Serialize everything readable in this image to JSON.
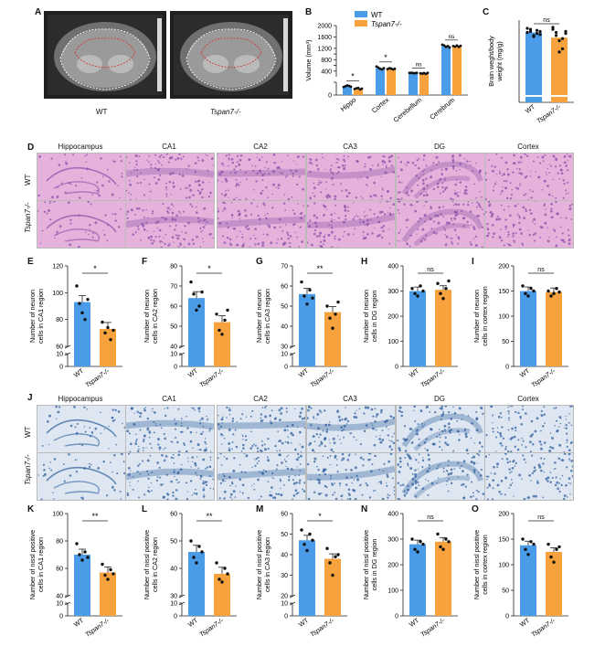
{
  "colors": {
    "wt": "#4a9be8",
    "ko": "#f7a23c",
    "he_bg": "#e6b2dc",
    "he_dot": "#8a4fa6",
    "nissl_bg": "#dde6f1",
    "nissl_dot": "#2f5f9d",
    "mri_bg": "#1f1f1f"
  },
  "panels": {
    "A": "A",
    "B": "B",
    "C": "C",
    "D": "D",
    "E": "E",
    "F": "F",
    "G": "G",
    "H": "H",
    "I": "I",
    "J": "J",
    "K": "K",
    "L": "L",
    "M": "M",
    "N": "N",
    "O": "O"
  },
  "mri": {
    "wt_label": "WT",
    "ko_label": "Tspan7-/-"
  },
  "histology": {
    "columns": [
      "Hippocampus",
      "CA1",
      "CA2",
      "CA3",
      "DG",
      "Cortex"
    ],
    "rows": [
      "WT",
      "Tspan7-/-"
    ]
  },
  "chart_data": [
    {
      "id": "B",
      "type": "bar",
      "categories": [
        "Hippo",
        "Cortex",
        "Cerebellum",
        "Cerebrum"
      ],
      "series": [
        {
          "name": "WT",
          "values": [
            140,
            500,
            330,
            1280
          ]
        },
        {
          "name": "Tspan7-/-",
          "values": [
            100,
            480,
            320,
            1270
          ]
        }
      ],
      "points": {
        "WT": [
          [
            125,
            138,
            150,
            142,
            130
          ],
          [
            560,
            520,
            480,
            460,
            500
          ],
          [
            335,
            340,
            330,
            325,
            338
          ],
          [
            1330,
            1300,
            1250,
            1280,
            1230
          ]
        ],
        "Tspan7-/-": [
          [
            95,
            105,
            110,
            88,
            100
          ],
          [
            470,
            500,
            490,
            460,
            480
          ],
          [
            320,
            310,
            330,
            300,
            335
          ],
          [
            1280,
            1260,
            1300,
            1250,
            1290
          ]
        ]
      },
      "ylabel": "Volume (mm³)",
      "yticks": [
        0,
        200,
        400,
        600,
        800,
        1000,
        1200,
        1400,
        1600,
        2000
      ],
      "ylim": [
        0,
        2000
      ],
      "significance": [
        "*",
        "*",
        "ns",
        "ns"
      ],
      "legend": [
        "WT",
        "Tspan7-/-"
      ]
    },
    {
      "id": "C",
      "type": "bar",
      "categories": [
        "WT",
        "Tspan7-/-"
      ],
      "values": [
        6.8,
        6.3
      ],
      "points": [
        [
          7.2,
          6.9,
          6.5,
          7.0,
          6.6,
          6.8,
          7.1,
          6.4,
          6.7,
          6.9
        ],
        [
          7.3,
          6.8,
          6.0,
          5.2,
          6.9,
          7.1,
          6.5,
          4.9,
          6.2,
          6.7
        ]
      ],
      "ylabel": "Brain weght/body weight (mg/g)",
      "ylim": [
        0,
        8
      ],
      "yticks": [],
      "significance": "ns"
    },
    {
      "id": "E",
      "type": "bar",
      "categories": [
        "WT",
        "Tspan7-/-"
      ],
      "values": [
        93,
        73
      ],
      "points": [
        [
          105,
          92,
          85,
          80,
          95
        ],
        [
          78,
          70,
          74,
          65,
          72
        ]
      ],
      "ylabel": "Number of neuron cells in CA1 region",
      "yticks": [
        0,
        10,
        60,
        80,
        100,
        120
      ],
      "ylim": [
        0,
        120
      ],
      "break": [
        10,
        60
      ],
      "significance": "*"
    },
    {
      "id": "F",
      "type": "bar",
      "categories": [
        "WT",
        "Tspan7-/-"
      ],
      "values": [
        64,
        52
      ],
      "points": [
        [
          72,
          66,
          58,
          60,
          67
        ],
        [
          56,
          48,
          46,
          53,
          58
        ]
      ],
      "ylabel": "Number of neuron cells in CA2 region",
      "yticks": [
        0,
        10,
        40,
        50,
        60,
        70,
        80
      ],
      "ylim": [
        0,
        80
      ],
      "break": [
        10,
        40
      ],
      "significance": "*"
    },
    {
      "id": "G",
      "type": "bar",
      "categories": [
        "WT",
        "Tspan7-/-"
      ],
      "values": [
        56,
        47
      ],
      "points": [
        [
          62,
          55,
          51,
          58,
          54
        ],
        [
          50,
          44,
          39,
          46,
          52
        ]
      ],
      "ylabel": "Number of neuron cells in CA3 region",
      "yticks": [
        0,
        10,
        30,
        40,
        50,
        60,
        70
      ],
      "ylim": [
        0,
        70
      ],
      "break": [
        10,
        30
      ],
      "significance": "**"
    },
    {
      "id": "H",
      "type": "bar",
      "categories": [
        "WT",
        "Tspan7-/-"
      ],
      "values": [
        300,
        305
      ],
      "points": [
        [
          310,
          290,
          280,
          320,
          300
        ],
        [
          330,
          290,
          270,
          310,
          340
        ]
      ],
      "ylabel": "Number of neuron cells in DG region",
      "yticks": [
        0,
        100,
        200,
        300,
        400
      ],
      "ylim": [
        0,
        400
      ],
      "significance": "ns"
    },
    {
      "id": "I",
      "type": "bar",
      "categories": [
        "WT",
        "Tspan7-/-"
      ],
      "values": [
        150,
        148
      ],
      "points": [
        [
          160,
          145,
          140,
          155,
          150
        ],
        [
          150,
          140,
          145,
          155,
          148
        ]
      ],
      "ylabel": "Number of neuron cells in cortex region",
      "yticks": [
        0,
        50,
        100,
        150,
        200
      ],
      "ylim": [
        0,
        200
      ],
      "significance": "ns"
    },
    {
      "id": "K",
      "type": "bar",
      "categories": [
        "WT",
        "Tspan7-/-"
      ],
      "values": [
        70,
        57
      ],
      "points": [
        [
          78,
          70,
          66,
          72,
          68
        ],
        [
          63,
          55,
          52,
          59,
          56
        ]
      ],
      "ylabel": "Number of nissl positive cells in CA1 region",
      "yticks": [
        0,
        10,
        40,
        60,
        80,
        100
      ],
      "ylim": [
        0,
        100
      ],
      "break": [
        10,
        40
      ],
      "significance": "**"
    },
    {
      "id": "L",
      "type": "bar",
      "categories": [
        "WT",
        "Tspan7-/-"
      ],
      "values": [
        46,
        38
      ],
      "points": [
        [
          50,
          44,
          42,
          48,
          46
        ],
        [
          42,
          36,
          35,
          40,
          38
        ]
      ],
      "ylabel": "Number of nissl positive cells in CA2 region",
      "yticks": [
        0,
        10,
        30,
        40,
        50,
        60
      ],
      "ylim": [
        0,
        60
      ],
      "break": [
        10,
        30
      ],
      "significance": "**"
    },
    {
      "id": "M",
      "type": "bar",
      "categories": [
        "WT",
        "Tspan7-/-"
      ],
      "values": [
        47,
        38
      ],
      "points": [
        [
          52,
          45,
          42,
          50,
          47
        ],
        [
          43,
          36,
          30,
          39,
          40
        ]
      ],
      "ylabel": "Number of nissl positive cells in CA3 region",
      "yticks": [
        0,
        10,
        20,
        30,
        40,
        50,
        60
      ],
      "ylim": [
        0,
        60
      ],
      "break": [
        10,
        20
      ],
      "significance": "*"
    },
    {
      "id": "N",
      "type": "bar",
      "categories": [
        "WT",
        "Tspan7-/-"
      ],
      "values": [
        280,
        290
      ],
      "points": [
        [
          300,
          260,
          250,
          290,
          280
        ],
        [
          320,
          270,
          260,
          300,
          290
        ]
      ],
      "ylabel": "Number of nissl positive cells in DG region",
      "yticks": [
        0,
        100,
        200,
        300,
        400
      ],
      "ylim": [
        0,
        400
      ],
      "significance": "ns"
    },
    {
      "id": "O",
      "type": "bar",
      "categories": [
        "WT",
        "Tspan7-/-"
      ],
      "values": [
        138,
        125
      ],
      "points": [
        [
          150,
          130,
          120,
          145,
          140
        ],
        [
          140,
          115,
          105,
          130,
          135
        ]
      ],
      "ylabel": "Number of nissl positive cells in cortex region",
      "yticks": [
        0,
        50,
        100,
        150,
        200
      ],
      "ylim": [
        0,
        200
      ],
      "significance": "ns"
    }
  ]
}
